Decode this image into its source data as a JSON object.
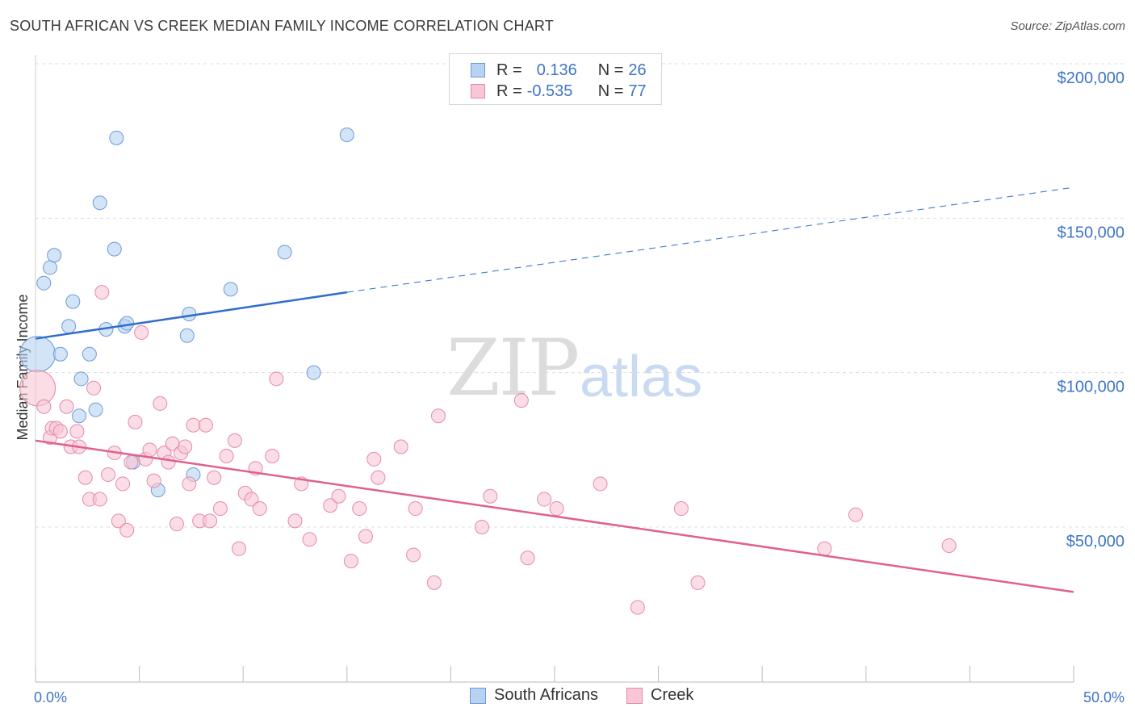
{
  "title": "SOUTH AFRICAN VS CREEK MEDIAN FAMILY INCOME CORRELATION CHART",
  "source": "Source: ZipAtlas.com",
  "watermark": {
    "zip": "ZIP",
    "atlas": "atlas"
  },
  "legend": {
    "rows": [
      {
        "r_label": "R = ",
        "r_value": "0.136",
        "n_label": "N = ",
        "n_value": "26"
      },
      {
        "r_label": "R = ",
        "r_value": "-0.535",
        "n_label": "N = ",
        "n_value": "77"
      }
    ]
  },
  "colors": {
    "blue_fill": "#b8d2f2",
    "blue_stroke": "#6b9bd8",
    "blue_line": "#2f6fc9",
    "pink_fill": "#f8c6d6",
    "pink_stroke": "#e58aa8",
    "pink_line": "#e0608e",
    "tick_label": "#3f74c8",
    "grid": "#dddddd"
  },
  "chart_data": {
    "type": "scatter",
    "title": "SOUTH AFRICAN VS CREEK MEDIAN FAMILY INCOME CORRELATION CHART",
    "xlabel": "",
    "ylabel": "Median Family Income",
    "xlim": [
      0,
      50
    ],
    "ylim": [
      0,
      210000
    ],
    "x_tick_labels": [
      {
        "value": 0,
        "label": "0.0%"
      },
      {
        "value": 50,
        "label": "50.0%"
      }
    ],
    "y_tick_labels": [
      {
        "value": 50000,
        "label": "$50,000"
      },
      {
        "value": 100000,
        "label": "$100,000"
      },
      {
        "value": 150000,
        "label": "$150,000"
      },
      {
        "value": 200000,
        "label": "$200,000"
      }
    ],
    "grid": "horizontal dashed",
    "legend_position": "top-center",
    "series": [
      {
        "name": "South Africans",
        "r": 0.136,
        "n": 26,
        "trend": {
          "x": [
            0,
            15
          ],
          "y": [
            111000,
            126000
          ],
          "dashed_extension_to": [
            50,
            160000
          ]
        },
        "points": [
          {
            "x": 0.1,
            "y": 106000,
            "size": "large"
          },
          {
            "x": 0.4,
            "y": 129000
          },
          {
            "x": 0.7,
            "y": 134000
          },
          {
            "x": 0.9,
            "y": 138000
          },
          {
            "x": 1.2,
            "y": 106000
          },
          {
            "x": 1.6,
            "y": 115000
          },
          {
            "x": 1.8,
            "y": 123000
          },
          {
            "x": 2.1,
            "y": 86000
          },
          {
            "x": 2.2,
            "y": 98000
          },
          {
            "x": 2.6,
            "y": 106000
          },
          {
            "x": 2.9,
            "y": 88000
          },
          {
            "x": 3.1,
            "y": 155000
          },
          {
            "x": 3.4,
            "y": 114000
          },
          {
            "x": 3.8,
            "y": 140000
          },
          {
            "x": 3.9,
            "y": 176000
          },
          {
            "x": 4.3,
            "y": 115000
          },
          {
            "x": 4.4,
            "y": 116000
          },
          {
            "x": 4.7,
            "y": 71000
          },
          {
            "x": 5.9,
            "y": 62000
          },
          {
            "x": 7.3,
            "y": 112000
          },
          {
            "x": 7.4,
            "y": 119000
          },
          {
            "x": 7.6,
            "y": 67000
          },
          {
            "x": 9.4,
            "y": 127000
          },
          {
            "x": 12.0,
            "y": 139000
          },
          {
            "x": 13.4,
            "y": 100000
          },
          {
            "x": 15.0,
            "y": 177000
          }
        ]
      },
      {
        "name": "Creek",
        "r": -0.535,
        "n": 77,
        "trend": {
          "x": [
            0,
            50
          ],
          "y": [
            78000,
            29000
          ]
        },
        "points": [
          {
            "x": 0.1,
            "y": 95000,
            "size": "large"
          },
          {
            "x": 0.4,
            "y": 89000
          },
          {
            "x": 0.7,
            "y": 79000
          },
          {
            "x": 0.8,
            "y": 82000
          },
          {
            "x": 1.0,
            "y": 82000
          },
          {
            "x": 1.2,
            "y": 81000
          },
          {
            "x": 1.5,
            "y": 89000
          },
          {
            "x": 1.7,
            "y": 76000
          },
          {
            "x": 2.0,
            "y": 81000
          },
          {
            "x": 2.1,
            "y": 76000
          },
          {
            "x": 2.4,
            "y": 66000
          },
          {
            "x": 2.6,
            "y": 59000
          },
          {
            "x": 2.8,
            "y": 95000
          },
          {
            "x": 3.1,
            "y": 59000
          },
          {
            "x": 3.2,
            "y": 126000
          },
          {
            "x": 3.5,
            "y": 67000
          },
          {
            "x": 3.8,
            "y": 74000
          },
          {
            "x": 4.0,
            "y": 52000
          },
          {
            "x": 4.2,
            "y": 64000
          },
          {
            "x": 4.4,
            "y": 49000
          },
          {
            "x": 4.6,
            "y": 71000
          },
          {
            "x": 4.8,
            "y": 84000
          },
          {
            "x": 5.1,
            "y": 113000
          },
          {
            "x": 5.3,
            "y": 72000
          },
          {
            "x": 5.5,
            "y": 75000
          },
          {
            "x": 5.7,
            "y": 65000
          },
          {
            "x": 6.0,
            "y": 90000
          },
          {
            "x": 6.2,
            "y": 74000
          },
          {
            "x": 6.4,
            "y": 71000
          },
          {
            "x": 6.6,
            "y": 77000
          },
          {
            "x": 6.8,
            "y": 51000
          },
          {
            "x": 7.0,
            "y": 74000
          },
          {
            "x": 7.2,
            "y": 76000
          },
          {
            "x": 7.4,
            "y": 64000
          },
          {
            "x": 7.6,
            "y": 83000
          },
          {
            "x": 7.9,
            "y": 52000
          },
          {
            "x": 8.2,
            "y": 83000
          },
          {
            "x": 8.4,
            "y": 52000
          },
          {
            "x": 8.6,
            "y": 66000
          },
          {
            "x": 8.9,
            "y": 56000
          },
          {
            "x": 9.2,
            "y": 73000
          },
          {
            "x": 9.6,
            "y": 78000
          },
          {
            "x": 9.8,
            "y": 43000
          },
          {
            "x": 10.1,
            "y": 61000
          },
          {
            "x": 10.4,
            "y": 59000
          },
          {
            "x": 10.6,
            "y": 69000
          },
          {
            "x": 10.8,
            "y": 56000
          },
          {
            "x": 11.4,
            "y": 73000
          },
          {
            "x": 11.6,
            "y": 98000
          },
          {
            "x": 12.5,
            "y": 52000
          },
          {
            "x": 12.8,
            "y": 64000
          },
          {
            "x": 13.2,
            "y": 46000
          },
          {
            "x": 14.2,
            "y": 57000
          },
          {
            "x": 14.6,
            "y": 60000
          },
          {
            "x": 15.2,
            "y": 39000
          },
          {
            "x": 15.6,
            "y": 56000
          },
          {
            "x": 15.9,
            "y": 47000
          },
          {
            "x": 16.3,
            "y": 72000
          },
          {
            "x": 16.5,
            "y": 66000
          },
          {
            "x": 17.6,
            "y": 76000
          },
          {
            "x": 18.2,
            "y": 41000
          },
          {
            "x": 18.3,
            "y": 56000
          },
          {
            "x": 19.2,
            "y": 32000
          },
          {
            "x": 19.4,
            "y": 86000
          },
          {
            "x": 21.5,
            "y": 50000
          },
          {
            "x": 21.9,
            "y": 60000
          },
          {
            "x": 23.4,
            "y": 91000
          },
          {
            "x": 23.7,
            "y": 40000
          },
          {
            "x": 24.5,
            "y": 59000
          },
          {
            "x": 25.1,
            "y": 56000
          },
          {
            "x": 27.2,
            "y": 64000
          },
          {
            "x": 29.0,
            "y": 24000
          },
          {
            "x": 31.1,
            "y": 56000
          },
          {
            "x": 31.9,
            "y": 32000
          },
          {
            "x": 38.0,
            "y": 43000
          },
          {
            "x": 39.5,
            "y": 54000
          },
          {
            "x": 44.0,
            "y": 44000
          }
        ]
      }
    ]
  }
}
